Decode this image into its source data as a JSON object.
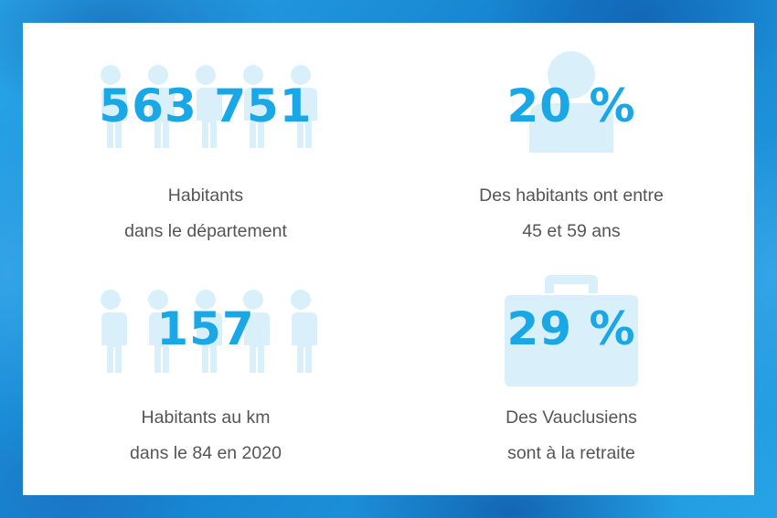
{
  "stats": [
    {
      "value": "563 751",
      "line1": "Habitants",
      "line2": "dans le département",
      "icon": "people-icon"
    },
    {
      "value": "20 %",
      "line1": "Des habitants ont entre",
      "line2": "45 et 59 ans",
      "icon": "person-icon"
    },
    {
      "value": "157",
      "line1": "Habitants au km",
      "line2": "dans le 84 en 2020",
      "icon": "people-icon"
    },
    {
      "value": "29 %",
      "line1": "Des Vauclusiens",
      "line2": "sont à la retraite",
      "icon": "briefcase-icon"
    }
  ],
  "colors": {
    "accent": "#1aa7e6",
    "icon": "#d9f0fb",
    "text": "#555555",
    "frame": "#1a9fe0"
  }
}
